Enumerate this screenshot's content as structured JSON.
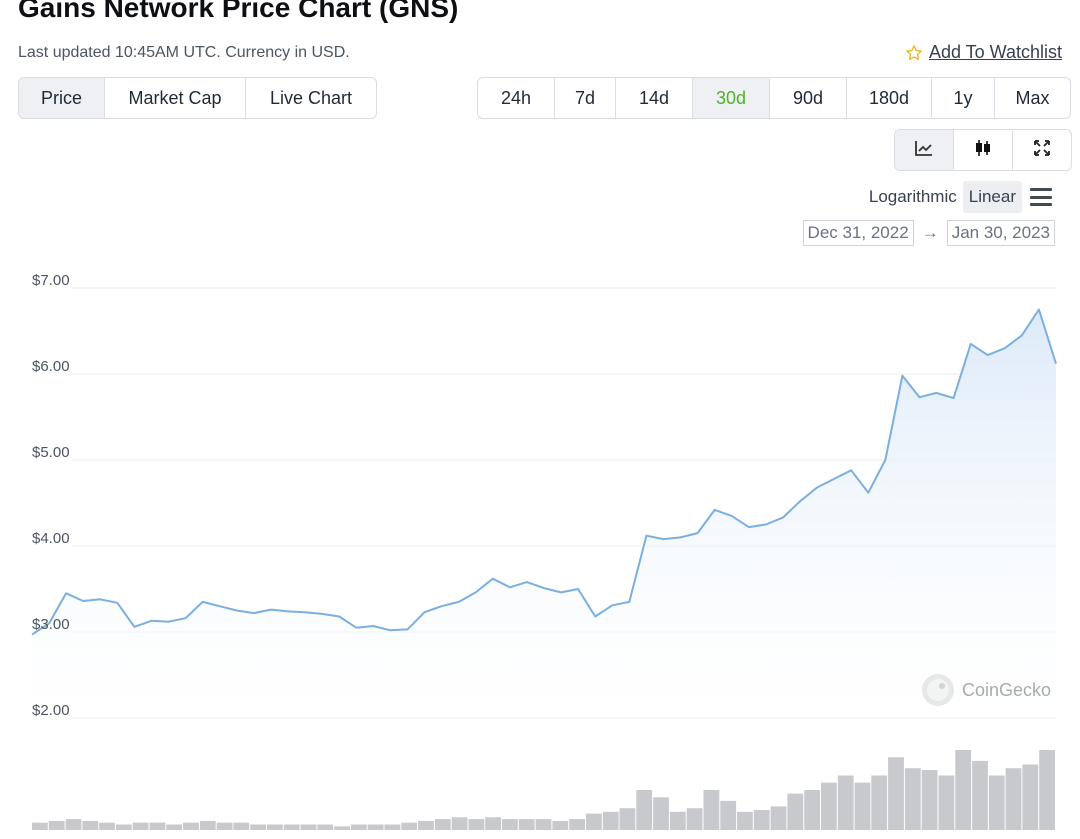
{
  "header": {
    "title": "Gains Network Price Chart (GNS)",
    "updated": "Last updated 10:45AM UTC. Currency in USD.",
    "watchlist_label": "Add To Watchlist"
  },
  "tabs": [
    {
      "label": "Price",
      "active": true
    },
    {
      "label": "Market Cap",
      "active": false
    },
    {
      "label": "Live Chart",
      "active": false
    }
  ],
  "ranges": [
    {
      "label": "24h",
      "active": false
    },
    {
      "label": "7d",
      "active": false
    },
    {
      "label": "14d",
      "active": false
    },
    {
      "label": "30d",
      "active": true
    },
    {
      "label": "90d",
      "active": false
    },
    {
      "label": "180d",
      "active": false
    },
    {
      "label": "1y",
      "active": false
    },
    {
      "label": "Max",
      "active": false
    }
  ],
  "chart_type_buttons": [
    {
      "icon": "line-chart-icon",
      "active": true
    },
    {
      "icon": "candlestick-icon",
      "active": false
    },
    {
      "icon": "fullscreen-icon",
      "active": false
    }
  ],
  "scale": {
    "log_label": "Logarithmic",
    "linear_label": "Linear",
    "active": "Linear"
  },
  "date_range": {
    "from": "Dec 31, 2022",
    "arrow": "→",
    "to": "Jan 30, 2023"
  },
  "watermark": "CoinGecko",
  "colors": {
    "line": "#7aafe0",
    "active_range": "#4fb329",
    "volume": "#c7c9cc"
  },
  "chart_data": {
    "type": "area",
    "title": "",
    "xlabel": "",
    "ylabel": "",
    "ylim": [
      2,
      7
    ],
    "yticks": [
      {
        "value": 7,
        "label": "$7.00"
      },
      {
        "value": 6,
        "label": "$6.00"
      },
      {
        "value": 5,
        "label": "$5.00"
      },
      {
        "value": 4,
        "label": "$4.00"
      },
      {
        "value": 3,
        "label": "$3.00"
      },
      {
        "value": 2,
        "label": "$2.00"
      }
    ],
    "grid": true,
    "legend": "none",
    "series": [
      {
        "x": [
          0,
          0.5,
          1,
          1.5,
          2,
          2.5,
          3,
          3.5,
          4,
          4.5,
          5,
          5.5,
          6,
          6.5,
          7,
          7.5,
          8,
          8.5,
          9,
          9.5,
          10,
          10.5,
          11,
          11.5,
          12,
          12.5,
          13,
          13.5,
          14,
          14.5,
          15,
          15.5,
          16,
          16.5,
          17,
          17.5,
          18,
          18.5,
          19,
          19.5,
          20,
          20.5,
          21,
          21.5,
          22,
          22.5,
          23,
          23.5,
          24,
          24.5,
          25,
          25.5,
          26,
          26.5,
          27,
          27.5,
          28,
          28.5,
          29,
          29.5,
          30
        ],
        "y": [
          2.97,
          3.1,
          3.45,
          3.36,
          3.38,
          3.34,
          3.06,
          3.13,
          3.12,
          3.16,
          3.35,
          3.3,
          3.25,
          3.22,
          3.26,
          3.24,
          3.23,
          3.21,
          3.18,
          3.05,
          3.07,
          3.02,
          3.03,
          3.23,
          3.3,
          3.35,
          3.46,
          3.62,
          3.52,
          3.58,
          3.51,
          3.46,
          3.5,
          3.18,
          3.31,
          3.35,
          4.12,
          4.08,
          4.1,
          4.15,
          4.42,
          4.35,
          4.22,
          4.25,
          4.33,
          4.52,
          4.68,
          4.78,
          4.88,
          4.62,
          5.0,
          5.98,
          5.73,
          5.78,
          5.72,
          6.35,
          6.22,
          6.3,
          6.45,
          6.75,
          6.12
        ]
      }
    ],
    "volume": [
      4,
      5,
      6,
      5,
      4,
      3,
      4,
      4,
      3,
      4,
      5,
      4,
      4,
      3,
      3,
      3,
      3,
      3,
      2,
      3,
      3,
      3,
      4,
      5,
      6,
      7,
      6,
      7,
      6,
      6,
      6,
      5,
      6,
      9,
      10,
      12,
      22,
      18,
      10,
      12,
      22,
      16,
      10,
      11,
      13,
      20,
      22,
      26,
      30,
      26,
      30,
      40,
      34,
      33,
      30,
      44,
      38,
      30,
      34,
      36,
      44
    ]
  }
}
